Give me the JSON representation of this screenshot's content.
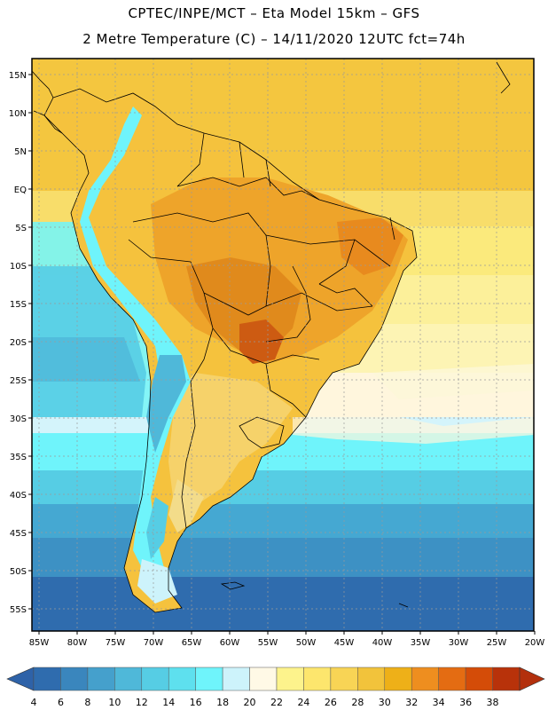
{
  "header": {
    "title_line1": "CPTEC/INPE/MCT –  Eta Model 15km – GFS",
    "title_line2": "2 Metre Temperature (C) – 14/11/2020 12UTC fct=74h"
  },
  "map": {
    "lat_labels": [
      "15N",
      "10N",
      "5N",
      "EQ",
      "5S",
      "10S",
      "15S",
      "20S",
      "25S",
      "30S",
      "35S",
      "40S",
      "45S",
      "50S",
      "55S"
    ],
    "lon_labels": [
      "85W",
      "80W",
      "75W",
      "70W",
      "65W",
      "60W",
      "55W",
      "50W",
      "45W",
      "40W",
      "35W",
      "30W",
      "25W",
      "20W"
    ]
  },
  "colorbar": {
    "values": [
      "4",
      "6",
      "8",
      "10",
      "12",
      "14",
      "16",
      "18",
      "20",
      "22",
      "24",
      "26",
      "28",
      "30",
      "32",
      "34",
      "36",
      "38"
    ],
    "colors": [
      "#2f6cae",
      "#3a86bd",
      "#45a0cc",
      "#4fb8d9",
      "#56cde4",
      "#5ee0ee",
      "#6ff4fb",
      "#cdf3fb",
      "#fff9e6",
      "#fdf38c",
      "#fde66d",
      "#f8d455",
      "#f2c33b",
      "#eeb018",
      "#ee8e1f",
      "#e46c12",
      "#d44c08",
      "#b8320a"
    ],
    "low_color": "#2e62a8",
    "high_color": "#b3300d"
  }
}
